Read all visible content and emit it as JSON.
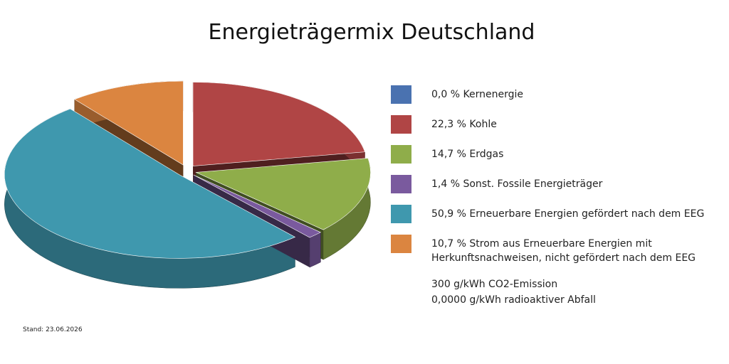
{
  "chart_data": {
    "type": "pie",
    "title": "Energieträgermix Deutschland",
    "categories": [
      "Kernenergie",
      "Kohle",
      "Erdgas",
      "Sonst. Fossile Energieträger",
      "Erneuerbare Energien gefördert nach dem EEG",
      "Strom aus Erneuerbare Energien mit Herkunftsnachweisen, nicht gefördert nach dem EEG"
    ],
    "values": [
      0.0,
      22.3,
      14.7,
      1.4,
      50.9,
      10.7
    ],
    "value_labels": [
      "0,0 %",
      "22,3 %",
      "14,7 %",
      "1,4 %",
      "50,9 %",
      "10,7 %"
    ],
    "colors": [
      "#4a72b0",
      "#b04545",
      "#8fad4a",
      "#7a5a9e",
      "#3f98ae",
      "#db8540"
    ],
    "annotations": [
      "300 g/kWh CO2-Emission",
      "0,0000 g/kWh radioaktiver Abfall",
      "Stand: 23.06.2026"
    ]
  }
}
